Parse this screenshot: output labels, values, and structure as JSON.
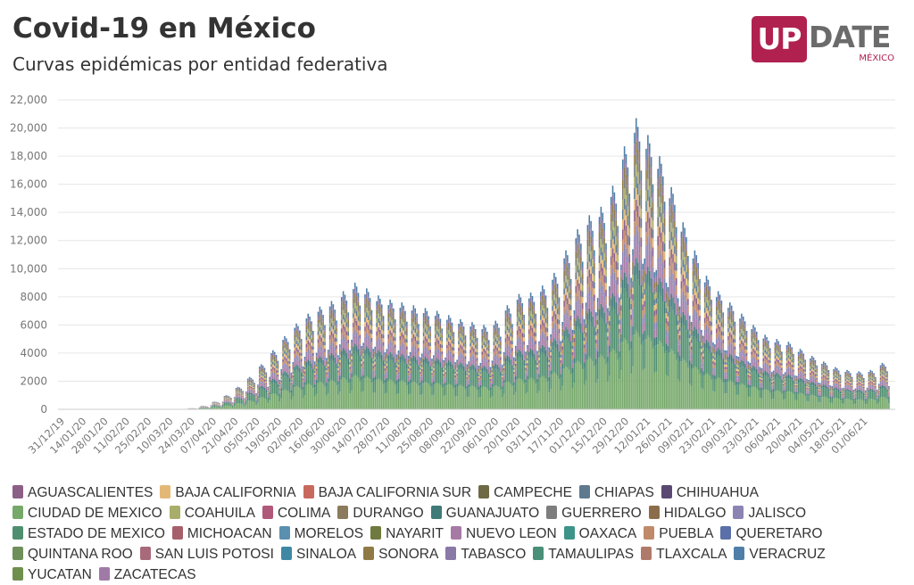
{
  "header": {
    "title": "Covid-19 en México",
    "subtitle": "Curvas epidémicas por entidad federativa"
  },
  "logo": {
    "box_text": "UP",
    "rest_text": "DATE",
    "sub_text": "MÉXICO"
  },
  "chart_data": {
    "type": "bar",
    "stacked": true,
    "title": "Covid-19 en México",
    "subtitle": "Curvas epidémicas por entidad federativa",
    "xlabel": "",
    "ylabel": "",
    "ylim": [
      0,
      22000
    ],
    "grid": true,
    "legend_position": "bottom",
    "y_ticks": [
      "0",
      "2000",
      "4000",
      "6000",
      "8000",
      "10,000",
      "12,000",
      "14,000",
      "16,000",
      "18,000",
      "20,000",
      "22,000"
    ],
    "x_ticks": [
      "31/12/19",
      "14/01/20",
      "28/01/20",
      "11/02/20",
      "25/02/20",
      "10/03/20",
      "24/03/20",
      "07/04/20",
      "21/04/20",
      "05/05/20",
      "19/05/20",
      "02/06/20",
      "16/06/20",
      "30/06/20",
      "14/07/20",
      "28/07/20",
      "11/08/20",
      "25/08/20",
      "08/09/20",
      "22/09/20",
      "06/10/20",
      "20/10/20",
      "03/11/20",
      "17/11/20",
      "01/12/20",
      "15/12/20",
      "29/12/20",
      "12/01/21",
      "26/01/21",
      "09/02/21",
      "23/02/21",
      "09/03/21",
      "23/03/21",
      "06/04/21",
      "20/04/21",
      "04/05/21",
      "18/05/21",
      "01/06/21"
    ],
    "weekly_peak_totals": [
      0,
      0,
      0,
      0,
      0,
      0,
      0,
      0,
      0,
      0,
      0,
      80,
      250,
      550,
      1000,
      1600,
      2300,
      3200,
      4200,
      5200,
      6100,
      6800,
      7300,
      7700,
      8400,
      9000,
      8600,
      8100,
      7800,
      7600,
      7400,
      7200,
      7000,
      6700,
      6400,
      6200,
      6000,
      6300,
      7400,
      8200,
      8300,
      8800,
      9700,
      11300,
      12800,
      13800,
      14400,
      15900,
      18700,
      20700,
      19500,
      18000,
      15800,
      13300,
      11300,
      9500,
      8400,
      7600,
      6800,
      6000,
      5300,
      5000,
      4800,
      4300,
      3800,
      3400,
      3000,
      2800,
      2700,
      2800,
      3300
    ],
    "stack_shares": {
      "ESTADO DE MEXICO": 0.19,
      "CIUDAD DE MEXICO": 0.27,
      "GUANAJUATO": 0.06,
      "NUEVO LEON": 0.06,
      "JALISCO": 0.05,
      "PUEBLA": 0.05,
      "OTHERS": 0.32
    },
    "series": [
      {
        "name": "AGUASCALIENTES",
        "color": "#8c5f87"
      },
      {
        "name": "BAJA CALIFORNIA",
        "color": "#e3b877"
      },
      {
        "name": "BAJA CALIFORNIA SUR",
        "color": "#c9695e"
      },
      {
        "name": "CAMPECHE",
        "color": "#6f6a45"
      },
      {
        "name": "CHIAPAS",
        "color": "#5f7a8f"
      },
      {
        "name": "CHIHUAHUA",
        "color": "#5a4772"
      },
      {
        "name": "CIUDAD DE MEXICO",
        "color": "#76a86a"
      },
      {
        "name": "COAHUILA",
        "color": "#a9ad6a"
      },
      {
        "name": "COLIMA",
        "color": "#b0587a"
      },
      {
        "name": "DURANGO",
        "color": "#8b7a5b"
      },
      {
        "name": "GUANAJUATO",
        "color": "#3f7a78"
      },
      {
        "name": "GUERRERO",
        "color": "#7d7d7d"
      },
      {
        "name": "HIDALGO",
        "color": "#8c6d4b"
      },
      {
        "name": "JALISCO",
        "color": "#8c84b3"
      },
      {
        "name": "ESTADO DE MEXICO",
        "color": "#4f8f6f"
      },
      {
        "name": "MICHOACAN",
        "color": "#a6606a"
      },
      {
        "name": "MORELOS",
        "color": "#5a8fb0"
      },
      {
        "name": "NAYARIT",
        "color": "#6f7a3f"
      },
      {
        "name": "NUEVO LEON",
        "color": "#a77aa6"
      },
      {
        "name": "OAXACA",
        "color": "#3d9488"
      },
      {
        "name": "PUEBLA",
        "color": "#c08a6a"
      },
      {
        "name": "QUERETARO",
        "color": "#5b6fa8"
      },
      {
        "name": "QUINTANA ROO",
        "color": "#6f8f5a"
      },
      {
        "name": "SAN LUIS POTOSI",
        "color": "#a86a7a"
      },
      {
        "name": "SINALOA",
        "color": "#3f88a3"
      },
      {
        "name": "SONORA",
        "color": "#8f7a45"
      },
      {
        "name": "TABASCO",
        "color": "#8a78a6"
      },
      {
        "name": "TAMAULIPAS",
        "color": "#4a8f78"
      },
      {
        "name": "TLAXCALA",
        "color": "#b07a6a"
      },
      {
        "name": "VERACRUZ",
        "color": "#4f7fa8"
      },
      {
        "name": "YUCATAN",
        "color": "#6f8f4f"
      },
      {
        "name": "ZACATECAS",
        "color": "#a07aa6"
      }
    ]
  }
}
